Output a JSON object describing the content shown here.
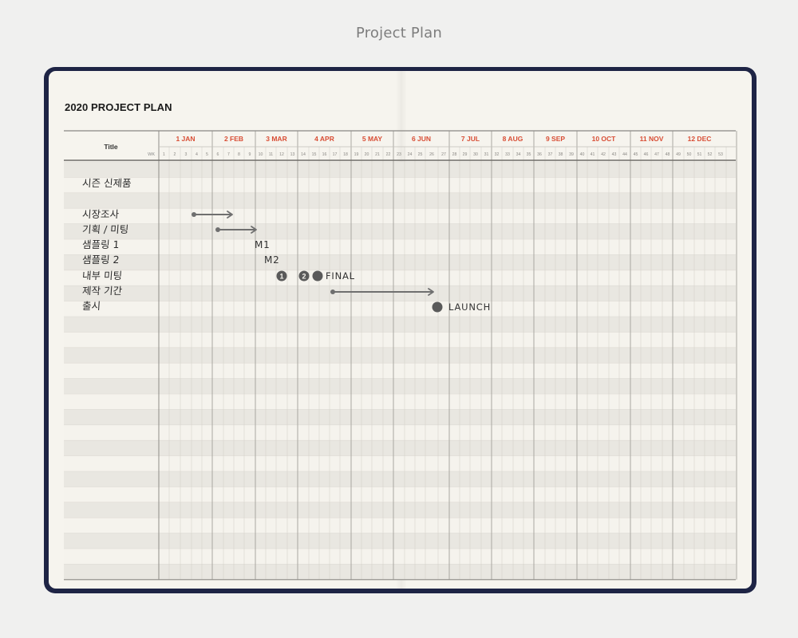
{
  "caption": "Project Plan",
  "plan_title": "2020 PROJECT PLAN",
  "header": {
    "title_label": "Title",
    "wk_label": "WK"
  },
  "months": [
    "1 JAN",
    "2 FEB",
    "3 MAR",
    "4 APR",
    "5 MAY",
    "6 JUN",
    "7 JUL",
    "8 AUG",
    "9 SEP",
    "10 OCT",
    "11 NOV",
    "12 DEC"
  ],
  "weeks": [
    "1",
    "2",
    "3",
    "4",
    "5",
    "6",
    "7",
    "8",
    "9",
    "10",
    "11",
    "12",
    "13",
    "14",
    "15",
    "16",
    "17",
    "18",
    "19",
    "20",
    "21",
    "22",
    "23",
    "24",
    "25",
    "26",
    "27",
    "28",
    "29",
    "30",
    "31",
    "32",
    "33",
    "34",
    "35",
    "36",
    "37",
    "38",
    "39",
    "40",
    "41",
    "42",
    "43",
    "44",
    "45",
    "46",
    "47",
    "48",
    "49",
    "50",
    "51",
    "52",
    "53"
  ],
  "tasks": [
    {
      "row": 1,
      "label": "시즌 신제품"
    },
    {
      "row": 3,
      "label": "시장조사"
    },
    {
      "row": 4,
      "label": "기획 / 미팅"
    },
    {
      "row": 5,
      "label": "샘플링 1"
    },
    {
      "row": 6,
      "label": "샘플링 2"
    },
    {
      "row": 7,
      "label": "내부 미팅"
    },
    {
      "row": 8,
      "label": "제작 기간"
    },
    {
      "row": 9,
      "label": "출시"
    }
  ],
  "annotations": {
    "m1": "M1",
    "m2": "M2",
    "meeting_1": "1",
    "meeting_2": "2",
    "final": "FINAL",
    "launch": "LAUNCH"
  },
  "colors": {
    "month_red": "#d84d34",
    "cover_navy": "#1e2445",
    "paper": "#f6f4ee",
    "marker": "#6f6f6f"
  }
}
